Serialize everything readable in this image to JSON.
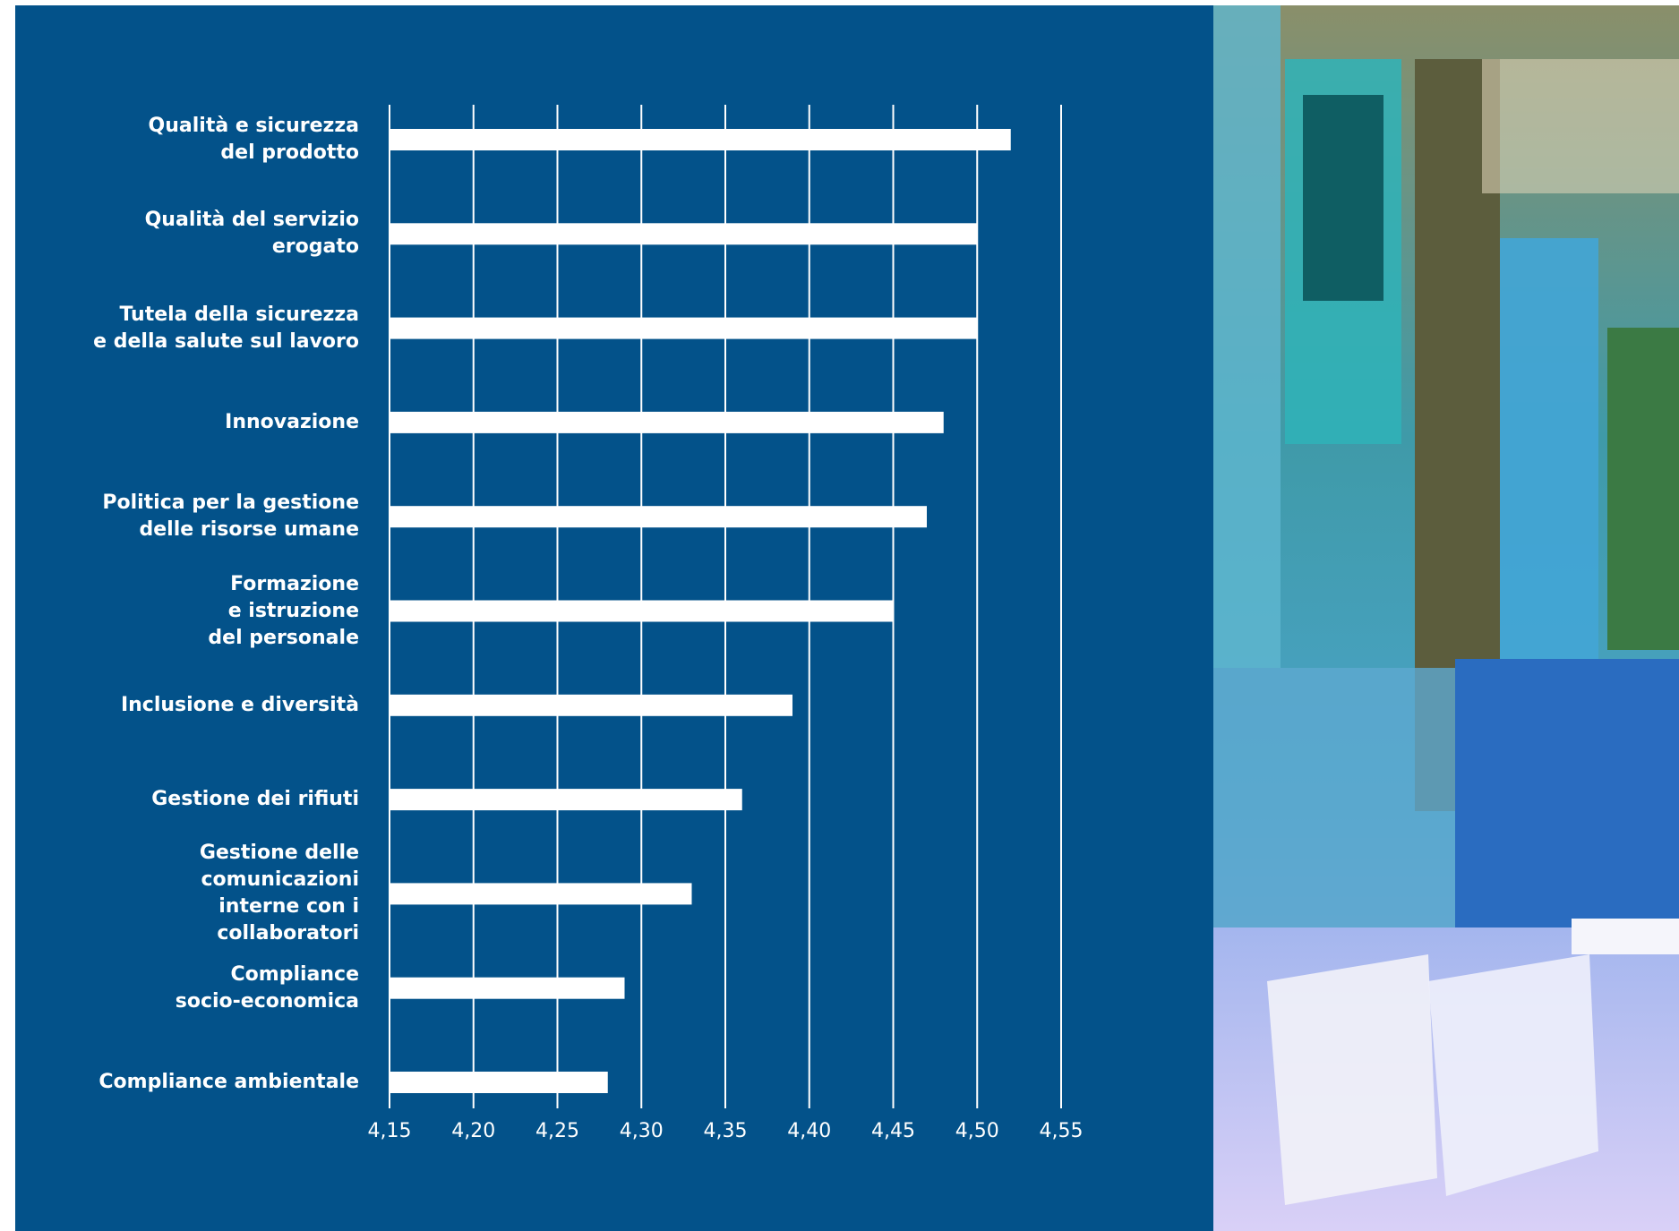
{
  "chart_data": {
    "type": "bar",
    "orientation": "horizontal",
    "categories": [
      "Qualità e sicurezza\ndel prodotto",
      "Qualità del servizio\nerogato",
      "Tutela della sicurezza\ne della salute sul lavoro",
      "Innovazione",
      "Politica per la gestione\ndelle risorse umane",
      "Formazione\ne istruzione\ndel personale",
      "Inclusione e diversità",
      "Gestione dei rifiuti",
      "Gestione delle\ncomunicazioni\ninterne con i\ncollaboratori",
      "Compliance\nsocio-economica",
      "Compliance ambientale"
    ],
    "values": [
      4.52,
      4.5,
      4.5,
      4.48,
      4.47,
      4.45,
      4.39,
      4.36,
      4.33,
      4.29,
      4.28
    ],
    "color": "#ffffff",
    "xlim": [
      4.15,
      4.55
    ],
    "xticks": [
      {
        "value": 4.15,
        "label": "4,15"
      },
      {
        "value": 4.2,
        "label": "4,20"
      },
      {
        "value": 4.25,
        "label": "4,25"
      },
      {
        "value": 4.3,
        "label": "4,30"
      },
      {
        "value": 4.35,
        "label": "4,35"
      },
      {
        "value": 4.4,
        "label": "4,40"
      },
      {
        "value": 4.45,
        "label": "4,45"
      },
      {
        "value": 4.5,
        "label": "4,50"
      },
      {
        "value": 4.55,
        "label": "4,55"
      }
    ],
    "grid": true
  }
}
